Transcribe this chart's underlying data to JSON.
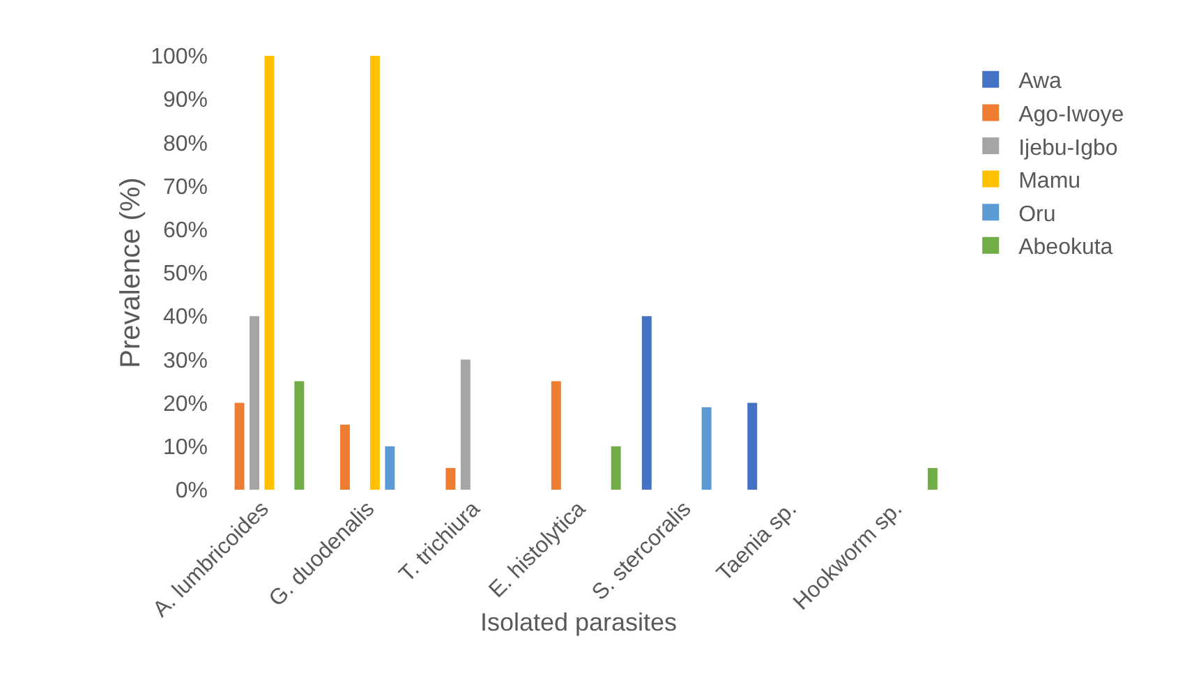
{
  "chart_data": {
    "type": "bar",
    "xlabel": "Isolated parasites",
    "ylabel": "Prevalence (%)",
    "categories": [
      "A. lumbricoides",
      "G. duodenalis",
      "T. trichiura",
      "E. histolytica",
      "S. stercoralis",
      "Taenia sp.",
      "Hookworm sp."
    ],
    "series": [
      {
        "name": "Awa",
        "color": "#4472c4",
        "values": [
          null,
          null,
          null,
          null,
          40,
          20,
          null
        ]
      },
      {
        "name": "Ago-Iwoye",
        "color": "#ed7d31",
        "values": [
          20,
          15,
          5,
          25,
          null,
          null,
          null
        ]
      },
      {
        "name": "Ijebu-Igbo",
        "color": "#a5a5a5",
        "values": [
          40,
          null,
          30,
          null,
          null,
          null,
          null
        ]
      },
      {
        "name": "Mamu",
        "color": "#ffc000",
        "values": [
          100,
          100,
          null,
          null,
          null,
          null,
          null
        ]
      },
      {
        "name": "Oru",
        "color": "#5b9bd5",
        "values": [
          null,
          10,
          null,
          null,
          19,
          null,
          null
        ]
      },
      {
        "name": "Abeokuta",
        "color": "#70ad47",
        "values": [
          25,
          null,
          null,
          10,
          null,
          null,
          5
        ]
      }
    ],
    "ylim": [
      0,
      100
    ],
    "yticks": [
      {
        "value": 0,
        "label": "0%"
      },
      {
        "value": 10,
        "label": "10%"
      },
      {
        "value": 20,
        "label": "20%"
      },
      {
        "value": 30,
        "label": "30%"
      },
      {
        "value": 40,
        "label": "40%"
      },
      {
        "value": 50,
        "label": "50%"
      },
      {
        "value": 60,
        "label": "60%"
      },
      {
        "value": 70,
        "label": "70%"
      },
      {
        "value": 80,
        "label": "80%"
      },
      {
        "value": 90,
        "label": "90%"
      },
      {
        "value": 100,
        "label": "100%"
      }
    ],
    "grid": false,
    "legend": "right"
  }
}
